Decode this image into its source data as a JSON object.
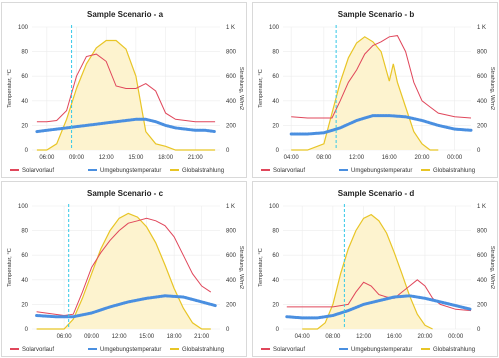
{
  "chart_data": [
    {
      "type": "line",
      "title": "Sample Scenario - a",
      "x_ticks": [
        "06:00",
        "09:00",
        "12:00",
        "15:00",
        "18:00",
        "21:00"
      ],
      "x_range_hours": [
        4.5,
        23.5
      ],
      "ylabel_left": "Temperatur, °C",
      "ylabel_right": "Strahlung, W/m2",
      "ylim_left": [
        0,
        100
      ],
      "ylim_right": [
        0,
        1000
      ],
      "y_ticks_left": [
        "0",
        "20",
        "40",
        "60",
        "80",
        "100"
      ],
      "y_ticks_right": [
        "0",
        "200",
        "400",
        "600",
        "800",
        "1 K"
      ],
      "vline_hours": 8.5,
      "series": [
        {
          "name": "Solarvorlauf",
          "axis": "left",
          "color": "#e0475b",
          "x": [
            5,
            6,
            7,
            8,
            9,
            10,
            11,
            12,
            13,
            14,
            15,
            16,
            17,
            18,
            19,
            20,
            21,
            22,
            23
          ],
          "y": [
            23,
            23,
            24,
            32,
            60,
            76,
            78,
            72,
            52,
            50,
            50,
            54,
            48,
            30,
            25,
            24,
            23,
            23,
            23
          ]
        },
        {
          "name": "Umgebungstemperatur",
          "axis": "left",
          "color": "#4a8fe0",
          "x": [
            5,
            6,
            7,
            8,
            9,
            10,
            11,
            12,
            13,
            14,
            15,
            16,
            17,
            18,
            19,
            20,
            21,
            22,
            23
          ],
          "y": [
            15,
            16,
            17,
            18,
            19,
            20,
            21,
            22,
            23,
            24,
            25,
            25,
            23,
            20,
            18,
            17,
            16,
            16,
            15
          ]
        },
        {
          "name": "Globalstrahlung",
          "axis": "right",
          "color": "#e8c526",
          "x": [
            5,
            6,
            7,
            8,
            9,
            10,
            11,
            12,
            13,
            14,
            15,
            16,
            17,
            18,
            19,
            20,
            21,
            22,
            23
          ],
          "y": [
            0,
            0,
            50,
            250,
            500,
            700,
            830,
            890,
            890,
            820,
            600,
            150,
            50,
            30,
            0,
            0,
            0,
            0,
            0
          ]
        }
      ]
    },
    {
      "type": "line",
      "title": "Sample Scenario - b",
      "x_ticks": [
        "04:00",
        "08:00",
        "12:00",
        "16:00",
        "20:00",
        "00:00"
      ],
      "x_range_hours": [
        3,
        26
      ],
      "ylabel_left": "Temperatur, °C",
      "ylabel_right": "Strahlung, W/m2",
      "ylim_left": [
        0,
        100
      ],
      "ylim_right": [
        0,
        1000
      ],
      "y_ticks_left": [
        "0",
        "20",
        "40",
        "60",
        "80",
        "100"
      ],
      "y_ticks_right": [
        "0",
        "200",
        "400",
        "600",
        "800",
        "1 K"
      ],
      "vline_hours": 9.5,
      "series": [
        {
          "name": "Solarvorlauf",
          "axis": "left",
          "color": "#e0475b",
          "x": [
            4,
            6,
            8,
            9,
            10,
            11,
            12,
            13,
            14,
            15,
            16,
            17,
            18,
            19,
            20,
            21,
            22,
            24,
            26
          ],
          "y": [
            27,
            26,
            26,
            26,
            40,
            55,
            65,
            78,
            85,
            88,
            92,
            93,
            80,
            55,
            40,
            35,
            30,
            27,
            26
          ]
        },
        {
          "name": "Umgebungstemperatur",
          "axis": "left",
          "color": "#4a8fe0",
          "x": [
            4,
            6,
            8,
            10,
            12,
            14,
            16,
            18,
            20,
            22,
            24,
            26
          ],
          "y": [
            13,
            13,
            14,
            18,
            24,
            28,
            28,
            27,
            24,
            20,
            17,
            16
          ]
        },
        {
          "name": "Globalstrahlung",
          "axis": "right",
          "color": "#e8c526",
          "x": [
            4,
            6,
            8,
            9,
            10,
            11,
            12,
            13,
            14,
            15,
            16,
            16.5,
            17,
            18,
            19,
            20,
            21,
            22
          ],
          "y": [
            0,
            0,
            50,
            300,
            550,
            750,
            870,
            920,
            880,
            800,
            560,
            700,
            550,
            350,
            150,
            50,
            0,
            0
          ]
        }
      ]
    },
    {
      "type": "line",
      "title": "Sample Scenario - c",
      "x_ticks": [
        "06:00",
        "09:00",
        "12:00",
        "15:00",
        "18:00",
        "21:00"
      ],
      "x_range_hours": [
        2.5,
        23
      ],
      "ylabel_left": "Temperatur, °C",
      "ylabel_right": "Strahlung, W/m2",
      "ylim_left": [
        0,
        100
      ],
      "ylim_right": [
        0,
        1000
      ],
      "y_ticks_left": [
        "0",
        "20",
        "40",
        "60",
        "80",
        "100"
      ],
      "y_ticks_right": [
        "0",
        "200",
        "400",
        "600",
        "800",
        "1 K"
      ],
      "vline_hours": 6.5,
      "series": [
        {
          "name": "Solarvorlauf",
          "axis": "left",
          "color": "#e0475b",
          "x": [
            3,
            4,
            5,
            6,
            7,
            8,
            9,
            10,
            11,
            12,
            13,
            14,
            15,
            16,
            17,
            18,
            19,
            20,
            21,
            22
          ],
          "y": [
            14,
            13,
            12,
            11,
            12,
            30,
            50,
            62,
            72,
            80,
            86,
            88,
            90,
            88,
            84,
            75,
            60,
            45,
            35,
            30
          ]
        },
        {
          "name": "Umgebungstemperatur",
          "axis": "left",
          "color": "#4a8fe0",
          "x": [
            3,
            5,
            7,
            9,
            11,
            13,
            15,
            17,
            19,
            21,
            22.5
          ],
          "y": [
            11,
            10,
            10,
            13,
            18,
            22,
            25,
            27,
            26,
            22,
            19
          ]
        },
        {
          "name": "Globalstrahlung",
          "axis": "right",
          "color": "#e8c526",
          "x": [
            3,
            5,
            6,
            7,
            8,
            9,
            10,
            11,
            12,
            13,
            14,
            15,
            16,
            17,
            18,
            19,
            20,
            21,
            22
          ],
          "y": [
            0,
            0,
            0,
            80,
            250,
            450,
            650,
            800,
            900,
            940,
            910,
            830,
            700,
            520,
            330,
            170,
            50,
            0,
            0
          ]
        }
      ]
    },
    {
      "type": "line",
      "title": "Sample Scenario - d",
      "x_ticks": [
        "04:00",
        "08:00",
        "12:00",
        "16:00",
        "20:00",
        "00:00"
      ],
      "x_range_hours": [
        1.5,
        26
      ],
      "ylabel_left": "Temperatur, °C",
      "ylabel_right": "Strahlung, W/m2",
      "ylim_left": [
        0,
        100
      ],
      "ylim_right": [
        0,
        1000
      ],
      "y_ticks_left": [
        "0",
        "20",
        "40",
        "60",
        "80",
        "100"
      ],
      "y_ticks_right": [
        "0",
        "200",
        "400",
        "600",
        "800",
        "1 K"
      ],
      "vline_hours": 9.5,
      "series": [
        {
          "name": "Solarvorlauf",
          "axis": "left",
          "color": "#e0475b",
          "x": [
            2,
            4,
            6,
            8,
            10,
            11,
            12,
            13,
            14,
            15,
            16,
            17,
            18,
            19,
            20,
            21,
            22,
            24,
            26
          ],
          "y": [
            18,
            18,
            18,
            18,
            20,
            30,
            38,
            35,
            28,
            26,
            25,
            30,
            35,
            40,
            35,
            25,
            20,
            16,
            15
          ]
        },
        {
          "name": "Umgebungstemperatur",
          "axis": "left",
          "color": "#4a8fe0",
          "x": [
            2,
            4,
            6,
            8,
            10,
            12,
            14,
            16,
            18,
            20,
            22,
            24,
            26
          ],
          "y": [
            10,
            9,
            9,
            11,
            15,
            20,
            23,
            26,
            27,
            25,
            22,
            19,
            16
          ]
        },
        {
          "name": "Globalstrahlung",
          "axis": "right",
          "color": "#e8c526",
          "x": [
            4,
            6,
            7,
            8,
            9,
            10,
            11,
            12,
            13,
            14,
            15,
            16,
            17,
            18,
            19,
            20,
            21
          ],
          "y": [
            0,
            0,
            50,
            200,
            450,
            650,
            800,
            900,
            930,
            880,
            780,
            620,
            450,
            270,
            120,
            30,
            0
          ]
        }
      ]
    }
  ],
  "colors": {
    "vline": "#34c8e8",
    "fill": "#fdf3cf",
    "grid": "#ececec"
  }
}
